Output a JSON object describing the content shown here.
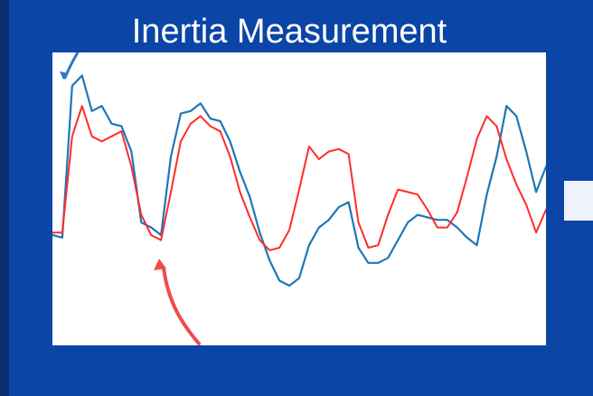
{
  "slide": {
    "title": "Inertia Measurement",
    "background_color": "#0b45a6",
    "text_color": "#ffffff"
  },
  "chart_data": {
    "type": "line",
    "title": "",
    "xlabel": "",
    "ylabel": "",
    "grid": false,
    "legend": "none",
    "xlim": [
      0,
      100
    ],
    "ylim": [
      0,
      100
    ],
    "series": [
      {
        "color": "#1f77b4",
        "x": [
          0,
          2,
          4,
          6,
          8,
          10,
          12,
          14,
          16,
          18,
          20,
          22,
          24,
          26,
          28,
          30,
          32,
          34,
          36,
          38,
          40,
          42,
          44,
          46,
          48,
          50,
          52,
          54,
          56,
          58,
          60,
          62,
          64,
          66,
          68,
          70,
          72,
          74,
          76,
          78,
          80,
          82,
          84,
          86,
          88,
          90,
          92,
          94,
          96,
          98,
          100
        ],
        "y": [
          35,
          34,
          94,
          98,
          84,
          86,
          79,
          78,
          68,
          40,
          38,
          35,
          66,
          83,
          84,
          87,
          81,
          80,
          72,
          60,
          50,
          36,
          25,
          17,
          15,
          18,
          31,
          38,
          41,
          46,
          48,
          30,
          24,
          24,
          26,
          33,
          40,
          43,
          42,
          41,
          41,
          38,
          34,
          31,
          51,
          66,
          86,
          82,
          68,
          52,
          62
        ]
      },
      {
        "color": "#ff2b2b",
        "x": [
          0,
          2,
          4,
          6,
          8,
          10,
          12,
          14,
          16,
          18,
          20,
          22,
          24,
          26,
          28,
          30,
          32,
          34,
          36,
          38,
          40,
          42,
          44,
          46,
          48,
          50,
          52,
          54,
          56,
          58,
          60,
          62,
          64,
          66,
          68,
          70,
          72,
          74,
          76,
          78,
          80,
          82,
          84,
          86,
          88,
          90,
          92,
          94,
          96,
          98,
          100
        ],
        "y": [
          36,
          36,
          74,
          86,
          74,
          72,
          74,
          76,
          62,
          43,
          35,
          33,
          52,
          72,
          79,
          82,
          78,
          76,
          66,
          52,
          42,
          33,
          29,
          30,
          37,
          53,
          70,
          65,
          68,
          69,
          67,
          40,
          30,
          31,
          43,
          53,
          52,
          51,
          45,
          38,
          38,
          44,
          58,
          73,
          82,
          78,
          65,
          55,
          47,
          36,
          45
        ]
      }
    ]
  }
}
